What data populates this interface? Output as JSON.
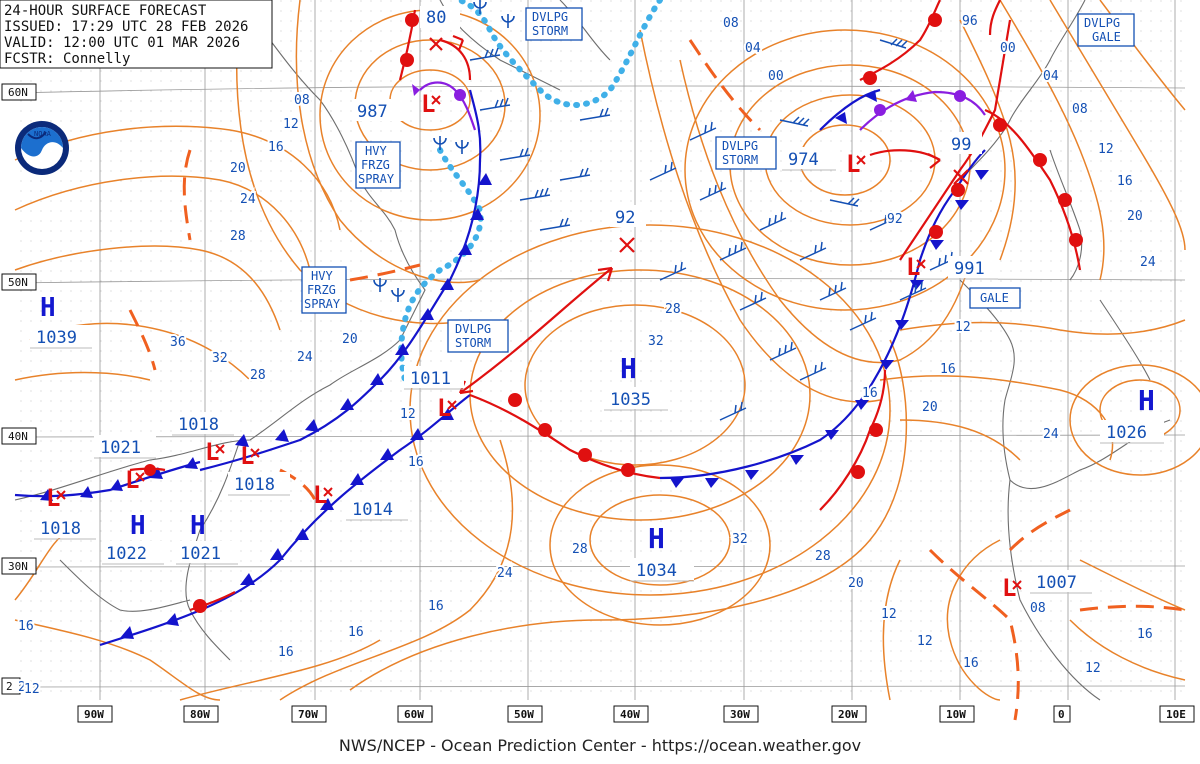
{
  "header": {
    "line1": "24-HOUR SURFACE FORECAST",
    "line2": "ISSUED: 17:29 UTC 28 FEB 2026",
    "line3": "VALID:  12:00 UTC 01 MAR 2026",
    "line4": "FCSTR:  Connelly"
  },
  "footer": "NWS/NCEP - Ocean Prediction Center - https://ocean.weather.gov",
  "colors": {
    "isobar": "#e8822a",
    "front_cold": "#1414cc",
    "front_warm": "#e01010",
    "front_occluded": "#8a1ee0",
    "ice_edge": "#40b0e8",
    "trough": "#f06020",
    "label_blue": "#1450b4",
    "high": "#1418d0",
    "low": "#e01010"
  },
  "axes": {
    "lon_labels": [
      "90W",
      "80W",
      "70W",
      "60W",
      "50W",
      "40W",
      "30W",
      "20W",
      "10W",
      "0",
      "10E"
    ],
    "lat_labels": [
      "60N",
      "50N",
      "40N",
      "30N",
      "2"
    ]
  },
  "highs": [
    {
      "id": "h1",
      "pressure": "1039"
    },
    {
      "id": "h2",
      "pressure": "1035"
    },
    {
      "id": "h3",
      "pressure": "1034"
    },
    {
      "id": "h4",
      "pressure": "1026"
    },
    {
      "id": "h5",
      "pressure": "1022"
    },
    {
      "id": "h6",
      "pressure": "1021"
    }
  ],
  "lows": [
    {
      "id": "l1",
      "pressure": "80"
    },
    {
      "id": "l2",
      "pressure": "987"
    },
    {
      "id": "l3",
      "pressure": "974"
    },
    {
      "id": "l4",
      "pressure": "99"
    },
    {
      "id": "l5",
      "pressure": "991"
    },
    {
      "id": "l6",
      "pressure": "92"
    },
    {
      "id": "l7",
      "pressure": "1011"
    },
    {
      "id": "l8",
      "pressure": "1014"
    },
    {
      "id": "l9",
      "pressure": "1018"
    },
    {
      "id": "l10",
      "pressure": "1018"
    },
    {
      "id": "l11",
      "pressure": "1021"
    },
    {
      "id": "l12",
      "pressure": "1018"
    },
    {
      "id": "l13",
      "pressure": "1007"
    }
  ],
  "warnings": [
    {
      "id": "w1",
      "lines": [
        "DVLPG",
        "STORM"
      ]
    },
    {
      "id": "w2",
      "lines": [
        "HVY",
        "FRZG",
        "SPRAY"
      ]
    },
    {
      "id": "w3",
      "lines": [
        "HVY",
        "FRZG",
        "SPRAY"
      ]
    },
    {
      "id": "w4",
      "lines": [
        "DVLPG",
        "STORM"
      ]
    },
    {
      "id": "w5",
      "lines": [
        "DVLPG",
        "STORM"
      ]
    },
    {
      "id": "w6",
      "lines": [
        "DVLPG",
        "GALE"
      ]
    },
    {
      "id": "w7",
      "lines": [
        "GALE"
      ]
    }
  ],
  "isobar_labels": [
    "08",
    "04",
    "00",
    "96",
    "00",
    "04",
    "08",
    "12",
    "16",
    "20",
    "24",
    "08",
    "12",
    "16",
    "20",
    "24",
    "28",
    "36",
    "32",
    "28",
    "24",
    "20",
    "12",
    "16",
    "28",
    "32",
    "92",
    "12",
    "16",
    "20",
    "24",
    "28",
    "32",
    "28",
    "24",
    "20",
    "16",
    "12",
    "16",
    "12",
    "16",
    "16",
    "08",
    "12",
    "16",
    "2",
    "16",
    "12",
    "16"
  ]
}
